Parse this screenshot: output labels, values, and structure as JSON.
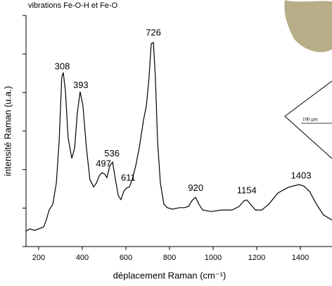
{
  "chart_data": {
    "type": "line",
    "title": "vibrations Fe-O-H et Fe-O",
    "xlabel": "déplacement Raman (cm⁻¹)",
    "ylabel": "intensité Raman (u.a.)",
    "color": "#000000",
    "x": [
      142,
      160,
      180,
      200,
      223,
      235,
      248,
      265,
      281,
      294,
      306,
      313,
      323,
      335,
      352,
      365,
      377,
      390,
      403,
      419,
      435,
      452,
      465,
      477,
      490,
      503,
      513,
      526,
      539,
      552,
      565,
      577,
      590,
      603,
      616,
      629,
      645,
      661,
      681,
      694,
      706,
      716,
      726,
      735,
      745,
      758,
      774,
      790,
      813,
      845,
      868,
      887,
      903,
      919,
      935,
      952,
      990,
      1039,
      1087,
      1119,
      1142,
      1155,
      1171,
      1194,
      1223,
      1255,
      1297,
      1345,
      1394,
      1416,
      1442,
      1474,
      1506,
      1545
    ],
    "values": [
      0.4,
      0.46,
      0.42,
      0.46,
      0.51,
      0.69,
      0.95,
      1.1,
      1.65,
      2.74,
      4.39,
      4.52,
      4.02,
      2.83,
      2.29,
      2.56,
      3.47,
      4.02,
      3.66,
      2.56,
      1.74,
      1.55,
      1.65,
      1.83,
      1.92,
      1.88,
      1.79,
      2.1,
      2.19,
      1.74,
      1.32,
      1.22,
      1.43,
      1.52,
      1.55,
      1.74,
      2.1,
      2.56,
      3.29,
      3.66,
      4.39,
      5.27,
      5.3,
      4.39,
      2.74,
      1.65,
      1.1,
      1.01,
      0.97,
      1.01,
      1.01,
      1.04,
      1.19,
      1.28,
      1.1,
      0.95,
      0.91,
      0.95,
      0.95,
      1.04,
      1.19,
      1.21,
      1.1,
      0.95,
      0.95,
      1.1,
      1.39,
      1.54,
      1.61,
      1.57,
      1.43,
      1.1,
      0.82,
      0.69
    ],
    "peak_labels": [
      308,
      393,
      497,
      536,
      611,
      726,
      920,
      1154,
      1403
    ],
    "xlim": [
      142,
      1545
    ],
    "xticks": [
      200,
      400,
      600,
      800,
      1000,
      1200,
      1400
    ],
    "ylim": [
      0,
      6
    ],
    "yticks": [
      0,
      1,
      2,
      3,
      4,
      5,
      6
    ]
  },
  "inset": {
    "scale_label": "100 µm"
  }
}
